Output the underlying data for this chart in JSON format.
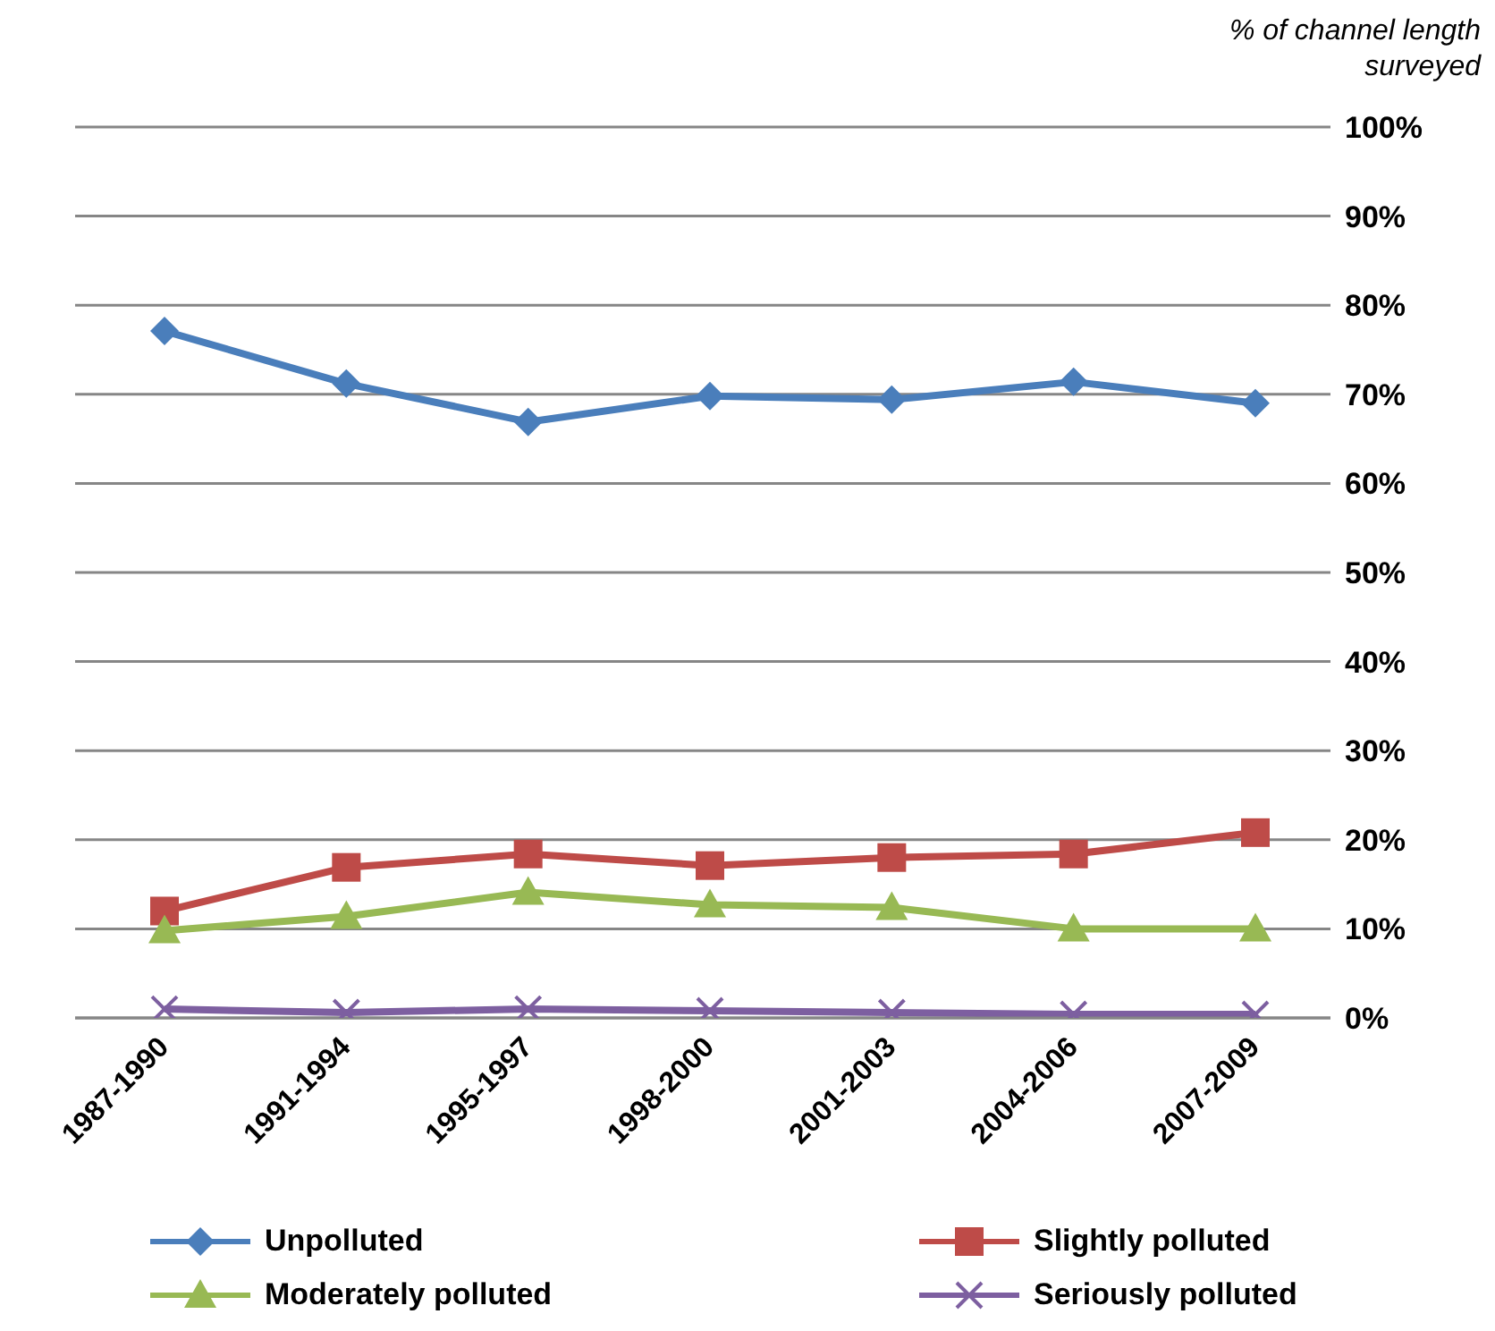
{
  "chart_data": {
    "type": "line",
    "ylabel": "% of channel length surveyed",
    "categories": [
      "1987-1990",
      "1991-1994",
      "1995-1997",
      "1998-2000",
      "2001-2003",
      "2004-2006",
      "2007-2009"
    ],
    "series": [
      {
        "name": "Unpolluted",
        "color": "#4a7ebb",
        "marker": "diamond",
        "values": [
          77.1,
          71.2,
          66.9,
          69.8,
          69.4,
          71.4,
          69.0
        ]
      },
      {
        "name": "Slightly polluted",
        "color": "#be4b48",
        "marker": "square",
        "values": [
          12.0,
          16.9,
          18.4,
          17.1,
          18.0,
          18.4,
          20.8
        ]
      },
      {
        "name": "Moderately polluted",
        "color": "#98b954",
        "marker": "triangle",
        "values": [
          9.8,
          11.4,
          14.1,
          12.7,
          12.4,
          10.0,
          10.0
        ]
      },
      {
        "name": "Seriously polluted",
        "color": "#7d5fa0",
        "marker": "cross",
        "values": [
          1.0,
          0.6,
          1.0,
          0.8,
          0.6,
          0.4,
          0.4
        ]
      }
    ],
    "ylim": [
      0,
      100
    ],
    "yticks": [
      {
        "value": 0,
        "label": "0%"
      },
      {
        "value": 10,
        "label": "10%"
      },
      {
        "value": 20,
        "label": "20%"
      },
      {
        "value": 30,
        "label": "30%"
      },
      {
        "value": 40,
        "label": "40%"
      },
      {
        "value": 50,
        "label": "50%"
      },
      {
        "value": 60,
        "label": "60%"
      },
      {
        "value": 70,
        "label": "70%"
      },
      {
        "value": 80,
        "label": "80%"
      },
      {
        "value": 90,
        "label": "90%"
      },
      {
        "value": 100,
        "label": "100%"
      }
    ],
    "grid": "y",
    "legend": "bottom",
    "line_style": "solid"
  }
}
